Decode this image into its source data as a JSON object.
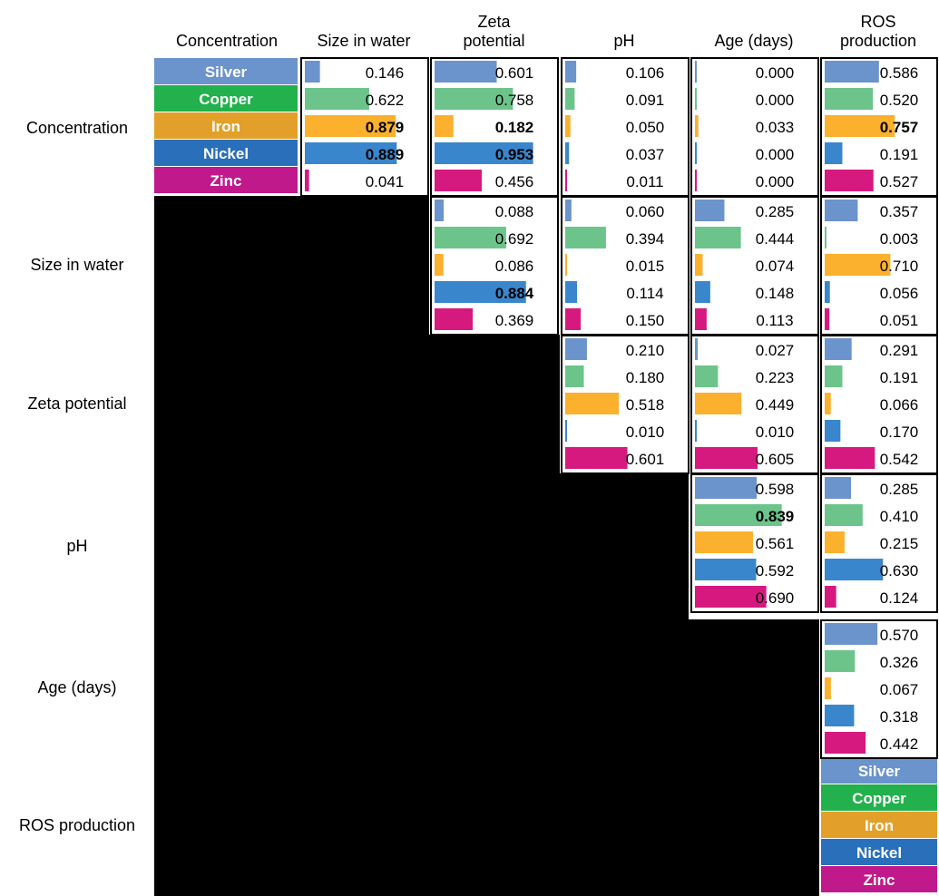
{
  "columns": [
    "Concentration",
    "Size in water",
    "Zeta potential",
    "pH",
    "Age (days)",
    "ROS production"
  ],
  "column_headers": [
    "Concentration",
    "Size in water",
    "Zeta\npotential",
    "pH",
    "Age (days)",
    "ROS\nproduction"
  ],
  "rows": [
    "Concentration",
    "Size in water",
    "Zeta potential",
    "pH",
    "Age (days)",
    "ROS production"
  ],
  "chart_data": {
    "type": "heatmap",
    "metals": [
      "Silver",
      "Copper",
      "Iron",
      "Nickel",
      "Zinc"
    ],
    "colors": {
      "Silver": {
        "label_bg": "#6b93cc",
        "bar": "#6b93cc"
      },
      "Copper": {
        "label_bg": "#22b14c",
        "bar": "#6cc48b"
      },
      "Iron": {
        "label_bg": "#e2a02a",
        "bar": "#fbb02e"
      },
      "Nickel": {
        "label_bg": "#2a6fba",
        "bar": "#3a86cc"
      },
      "Zinc": {
        "label_bg": "#c0198b",
        "bar": "#d6197f"
      }
    },
    "value_range": [
      0,
      1
    ],
    "cells": [
      {
        "row": "Concentration",
        "col": "Size in water",
        "values": [
          "0.146",
          "0.622",
          "0.879",
          "0.889",
          "0.041"
        ],
        "bold": [
          false,
          false,
          true,
          true,
          false
        ]
      },
      {
        "row": "Concentration",
        "col": "Zeta potential",
        "values": [
          "0.601",
          "0.758",
          "0.182",
          "0.953",
          "0.456"
        ],
        "bold": [
          false,
          false,
          true,
          true,
          false
        ]
      },
      {
        "row": "Concentration",
        "col": "pH",
        "values": [
          "0.106",
          "0.091",
          "0.050",
          "0.037",
          "0.011"
        ],
        "bold": [
          false,
          false,
          false,
          false,
          false
        ]
      },
      {
        "row": "Concentration",
        "col": "Age (days)",
        "values": [
          "0.000",
          "0.000",
          "0.033",
          "0.000",
          "0.000"
        ],
        "bold": [
          false,
          false,
          false,
          false,
          false
        ]
      },
      {
        "row": "Concentration",
        "col": "ROS production",
        "values": [
          "0.586",
          "0.520",
          "0.757",
          "0.191",
          "0.527"
        ],
        "bold": [
          false,
          false,
          true,
          false,
          false
        ]
      },
      {
        "row": "Size in water",
        "col": "Zeta potential",
        "values": [
          "0.088",
          "0.692",
          "0.086",
          "0.884",
          "0.369"
        ],
        "bold": [
          false,
          false,
          false,
          true,
          false
        ]
      },
      {
        "row": "Size in water",
        "col": "pH",
        "values": [
          "0.060",
          "0.394",
          "0.015",
          "0.114",
          "0.150"
        ],
        "bold": [
          false,
          false,
          false,
          false,
          false
        ]
      },
      {
        "row": "Size in water",
        "col": "Age (days)",
        "values": [
          "0.285",
          "0.444",
          "0.074",
          "0.148",
          "0.113"
        ],
        "bold": [
          false,
          false,
          false,
          false,
          false
        ]
      },
      {
        "row": "Size in water",
        "col": "ROS production",
        "values": [
          "0.357",
          "0.003",
          "0.710",
          "0.056",
          "0.051"
        ],
        "bold": [
          false,
          false,
          false,
          false,
          false
        ]
      },
      {
        "row": "Zeta potential",
        "col": "pH",
        "values": [
          "0.210",
          "0.180",
          "0.518",
          "0.010",
          "0.601"
        ],
        "bold": [
          false,
          false,
          false,
          false,
          false
        ]
      },
      {
        "row": "Zeta potential",
        "col": "Age (days)",
        "values": [
          "0.027",
          "0.223",
          "0.449",
          "0.010",
          "0.605"
        ],
        "bold": [
          false,
          false,
          false,
          false,
          false
        ]
      },
      {
        "row": "Zeta potential",
        "col": "ROS production",
        "values": [
          "0.291",
          "0.191",
          "0.066",
          "0.170",
          "0.542"
        ],
        "bold": [
          false,
          false,
          false,
          false,
          false
        ]
      },
      {
        "row": "pH",
        "col": "Age (days)",
        "values": [
          "0.598",
          "0.839",
          "0.561",
          "0.592",
          "0.690"
        ],
        "bold": [
          false,
          true,
          false,
          false,
          false
        ]
      },
      {
        "row": "pH",
        "col": "ROS production",
        "values": [
          "0.285",
          "0.410",
          "0.215",
          "0.630",
          "0.124"
        ],
        "bold": [
          false,
          false,
          false,
          false,
          false
        ]
      },
      {
        "row": "Age (days)",
        "col": "ROS production",
        "values": [
          "0.570",
          "0.326",
          "0.067",
          "0.318",
          "0.442"
        ],
        "bold": [
          false,
          false,
          false,
          false,
          false
        ]
      }
    ]
  }
}
